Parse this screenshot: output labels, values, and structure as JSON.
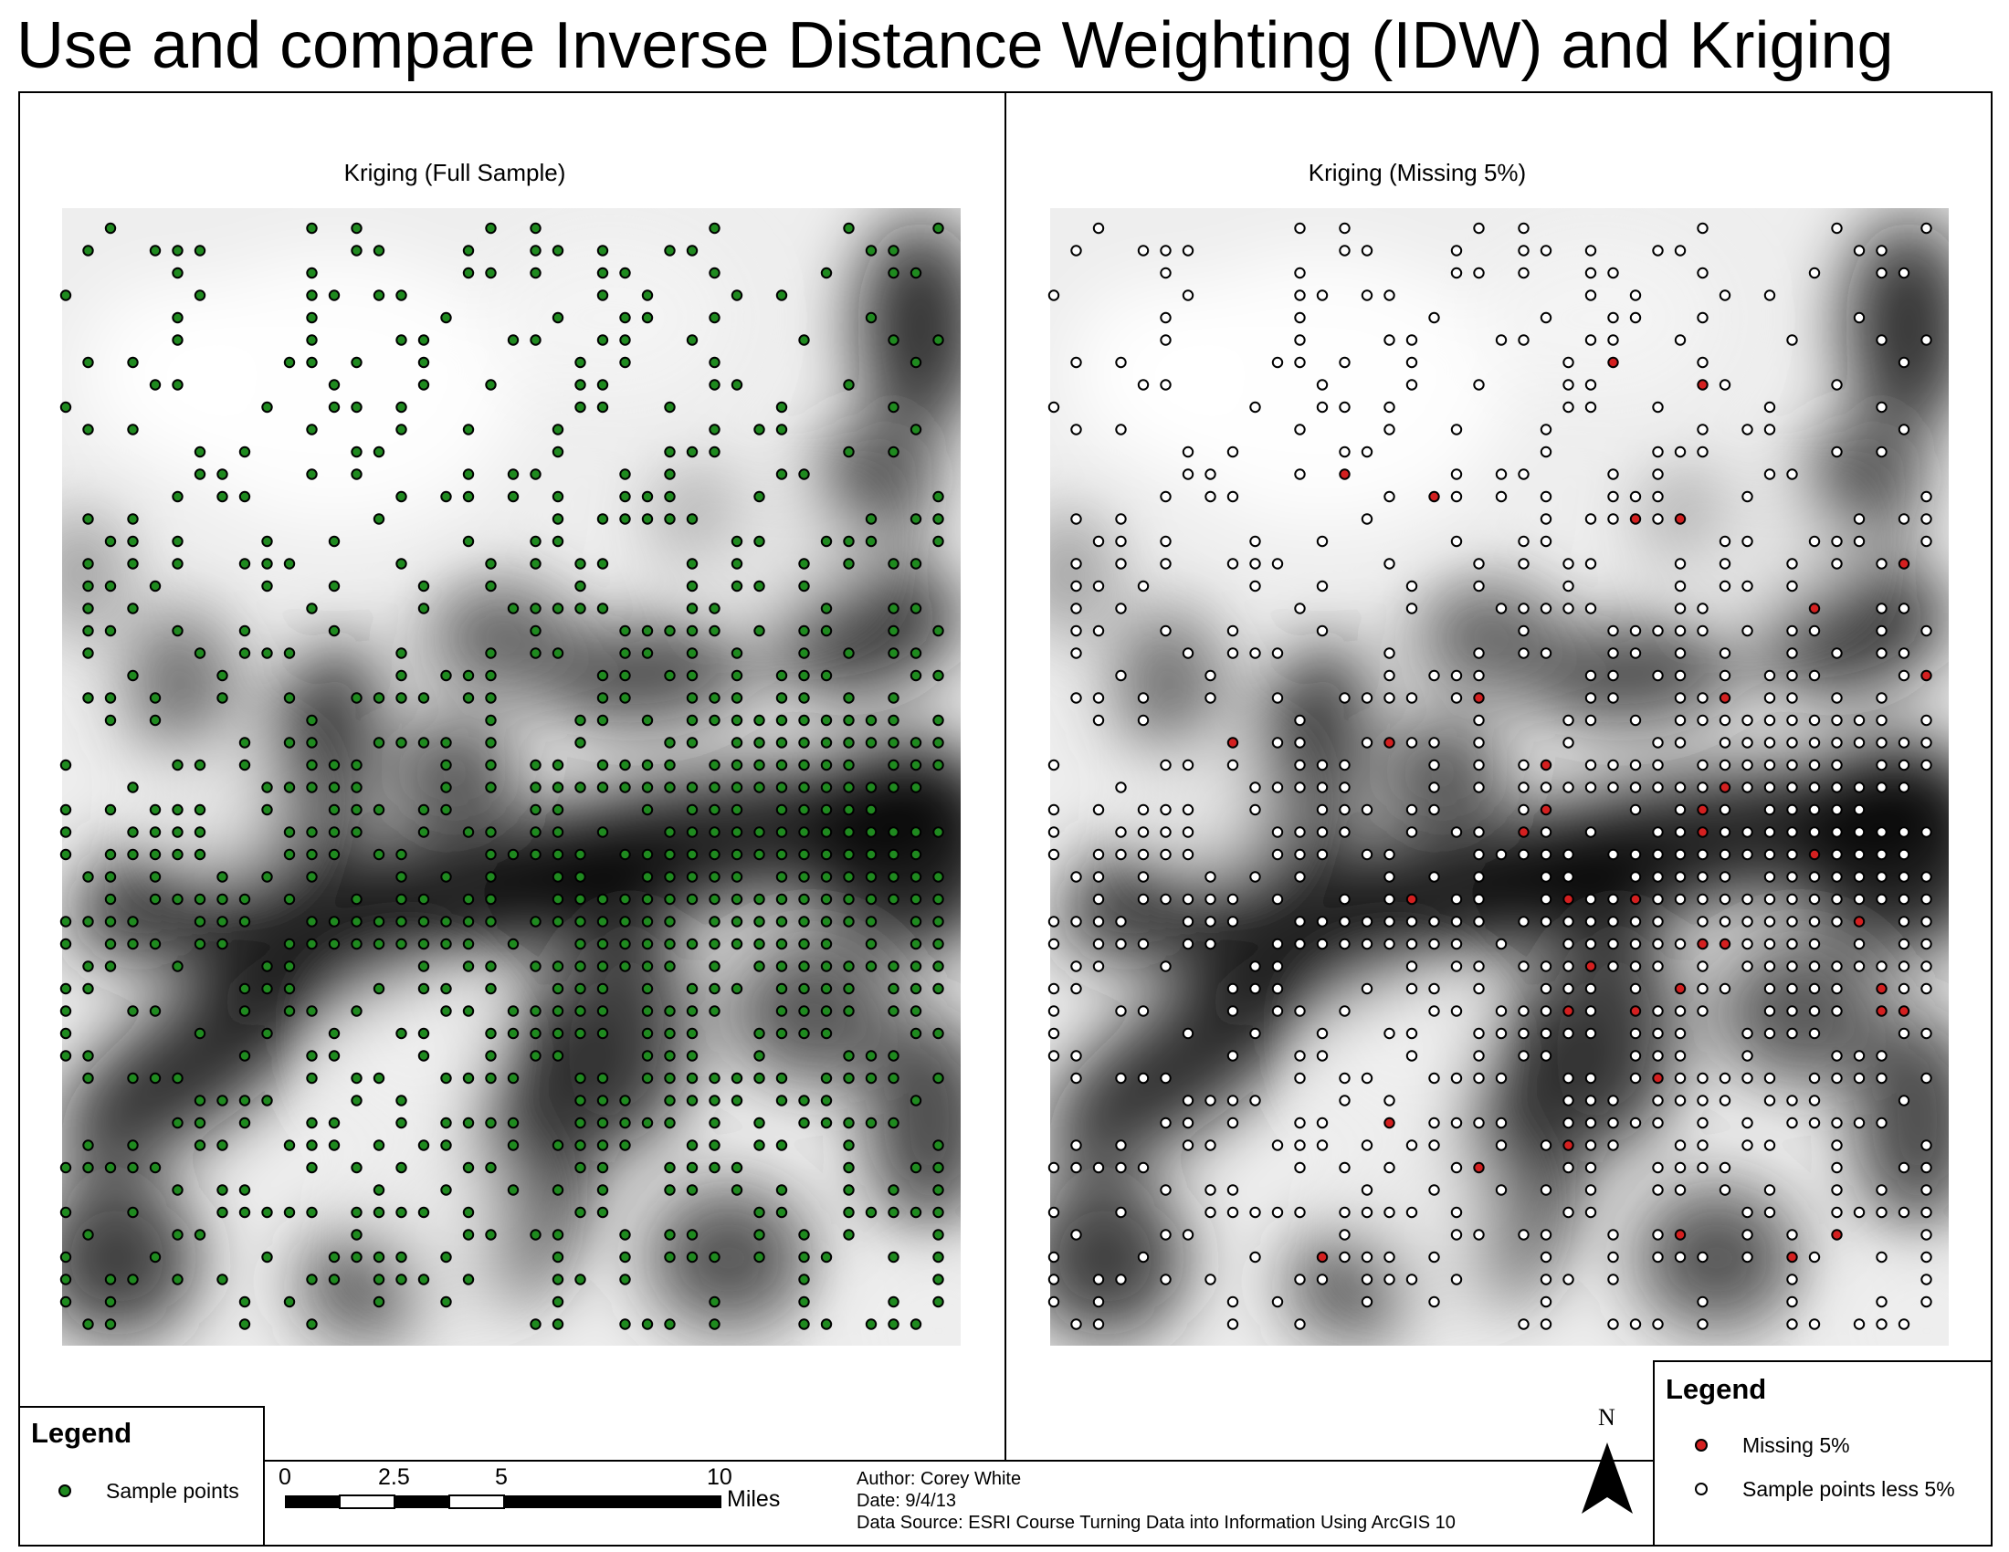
{
  "page": {
    "title": "Use and compare Inverse Distance Weighting (IDW) and Kriging"
  },
  "maps": {
    "left": {
      "title": "Kriging (Full Sample)"
    },
    "right": {
      "title": "Kriging (Missing 5%)"
    }
  },
  "legend_left": {
    "title": "Legend",
    "items": [
      {
        "label": "Sample points",
        "color": "#1f8a1f"
      }
    ]
  },
  "legend_right": {
    "title": "Legend",
    "items": [
      {
        "label": "Missing 5%",
        "color": "#d42020"
      },
      {
        "label": "Sample points less 5%",
        "color": "#ffffff"
      }
    ]
  },
  "scale_bar": {
    "ticks": [
      "0",
      "2.5",
      "5",
      "10"
    ],
    "unit": "Miles"
  },
  "credits": {
    "author": "Author: Corey White",
    "date": "Date: 9/4/13",
    "source": "Data Source: ESRI Course Turning Data into Information Using ArcGIS 10"
  },
  "north_arrow": {
    "label": "N"
  },
  "colors": {
    "surface_light": "#f4f4f4",
    "surface_dark": "#000000"
  }
}
